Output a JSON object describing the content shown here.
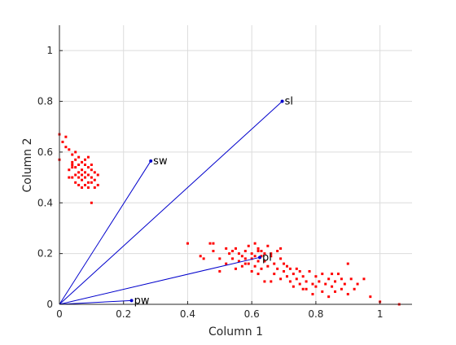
{
  "chart_data": {
    "type": "scatter",
    "title": "",
    "xlabel": "Column 1",
    "ylabel": "Column 2",
    "xlim": [
      0,
      1.1
    ],
    "ylim": [
      0,
      1.1
    ],
    "xticks": [
      0,
      0.2,
      0.4,
      0.6,
      0.8,
      1
    ],
    "yticks": [
      0,
      0.2,
      0.4,
      0.6,
      0.8,
      1
    ],
    "xtick_labels": [
      "0",
      "0.2",
      "0.4",
      "0.6",
      "0.8",
      "1"
    ],
    "ytick_labels": [
      "0",
      "0.2",
      "0.4",
      "0.6",
      "0.8",
      "1"
    ],
    "grid": true,
    "colors": {
      "points": "#ff0000",
      "vectors": "#0000cc",
      "grid": "#dcdcdc",
      "axes": "#262626"
    },
    "vectors": [
      {
        "name": "sl",
        "x": 0.695,
        "y": 0.8
      },
      {
        "name": "sw",
        "x": 0.285,
        "y": 0.565
      },
      {
        "name": "pl",
        "x": 0.625,
        "y": 0.185
      },
      {
        "name": "pw",
        "x": 0.225,
        "y": 0.015
      }
    ],
    "series": [
      {
        "marker": "square",
        "points": [
          [
            0.0,
            0.67
          ],
          [
            0.0,
            0.57
          ],
          [
            0.01,
            0.64
          ],
          [
            0.02,
            0.62
          ],
          [
            0.03,
            0.61
          ],
          [
            0.03,
            0.53
          ],
          [
            0.04,
            0.59
          ],
          [
            0.04,
            0.56
          ],
          [
            0.04,
            0.55
          ],
          [
            0.05,
            0.57
          ],
          [
            0.05,
            0.54
          ],
          [
            0.05,
            0.51
          ],
          [
            0.06,
            0.58
          ],
          [
            0.06,
            0.55
          ],
          [
            0.06,
            0.52
          ],
          [
            0.06,
            0.5
          ],
          [
            0.07,
            0.56
          ],
          [
            0.07,
            0.53
          ],
          [
            0.07,
            0.49
          ],
          [
            0.08,
            0.55
          ],
          [
            0.08,
            0.52
          ],
          [
            0.08,
            0.5
          ],
          [
            0.08,
            0.47
          ],
          [
            0.09,
            0.58
          ],
          [
            0.09,
            0.54
          ],
          [
            0.09,
            0.51
          ],
          [
            0.09,
            0.48
          ],
          [
            0.1,
            0.53
          ],
          [
            0.1,
            0.5
          ],
          [
            0.1,
            0.48
          ],
          [
            0.11,
            0.52
          ],
          [
            0.11,
            0.49
          ],
          [
            0.12,
            0.47
          ],
          [
            0.1,
            0.4
          ],
          [
            0.04,
            0.5
          ],
          [
            0.05,
            0.48
          ],
          [
            0.07,
            0.46
          ],
          [
            0.08,
            0.57
          ],
          [
            0.06,
            0.47
          ],
          [
            0.1,
            0.55
          ],
          [
            0.03,
            0.5
          ],
          [
            0.12,
            0.51
          ],
          [
            0.09,
            0.46
          ],
          [
            0.02,
            0.66
          ],
          [
            0.05,
            0.6
          ],
          [
            0.07,
            0.51
          ],
          [
            0.11,
            0.46
          ],
          [
            0.04,
            0.54
          ],
          [
            0.4,
            0.24
          ],
          [
            0.44,
            0.19
          ],
          [
            0.45,
            0.18
          ],
          [
            0.47,
            0.24
          ],
          [
            0.48,
            0.24
          ],
          [
            0.48,
            0.21
          ],
          [
            0.5,
            0.13
          ],
          [
            0.5,
            0.18
          ],
          [
            0.52,
            0.22
          ],
          [
            0.52,
            0.16
          ],
          [
            0.53,
            0.2
          ],
          [
            0.54,
            0.18
          ],
          [
            0.55,
            0.22
          ],
          [
            0.55,
            0.14
          ],
          [
            0.56,
            0.2
          ],
          [
            0.56,
            0.17
          ],
          [
            0.57,
            0.19
          ],
          [
            0.57,
            0.15
          ],
          [
            0.58,
            0.21
          ],
          [
            0.58,
            0.18
          ],
          [
            0.59,
            0.23
          ],
          [
            0.59,
            0.16
          ],
          [
            0.6,
            0.2
          ],
          [
            0.6,
            0.13
          ],
          [
            0.61,
            0.24
          ],
          [
            0.61,
            0.19
          ],
          [
            0.61,
            0.15
          ],
          [
            0.62,
            0.22
          ],
          [
            0.62,
            0.17
          ],
          [
            0.62,
            0.12
          ],
          [
            0.63,
            0.21
          ],
          [
            0.63,
            0.14
          ],
          [
            0.64,
            0.2
          ],
          [
            0.64,
            0.17
          ],
          [
            0.65,
            0.23
          ],
          [
            0.65,
            0.15
          ],
          [
            0.66,
            0.19
          ],
          [
            0.66,
            0.09
          ],
          [
            0.67,
            0.16
          ],
          [
            0.67,
            0.12
          ],
          [
            0.68,
            0.21
          ],
          [
            0.68,
            0.14
          ],
          [
            0.69,
            0.18
          ],
          [
            0.69,
            0.1
          ],
          [
            0.7,
            0.13
          ],
          [
            0.7,
            0.16
          ],
          [
            0.71,
            0.11
          ],
          [
            0.72,
            0.14
          ],
          [
            0.72,
            0.09
          ],
          [
            0.73,
            0.12
          ],
          [
            0.73,
            0.07
          ],
          [
            0.74,
            0.14
          ],
          [
            0.74,
            0.1
          ],
          [
            0.75,
            0.08
          ],
          [
            0.75,
            0.13
          ],
          [
            0.76,
            0.11
          ],
          [
            0.77,
            0.06
          ],
          [
            0.77,
            0.09
          ],
          [
            0.78,
            0.13
          ],
          [
            0.79,
            0.08
          ],
          [
            0.79,
            0.04
          ],
          [
            0.8,
            0.11
          ],
          [
            0.8,
            0.07
          ],
          [
            0.81,
            0.09
          ],
          [
            0.82,
            0.05
          ],
          [
            0.82,
            0.12
          ],
          [
            0.83,
            0.08
          ],
          [
            0.84,
            0.1
          ],
          [
            0.84,
            0.03
          ],
          [
            0.85,
            0.07
          ],
          [
            0.86,
            0.09
          ],
          [
            0.86,
            0.05
          ],
          [
            0.87,
            0.12
          ],
          [
            0.88,
            0.06
          ],
          [
            0.89,
            0.08
          ],
          [
            0.9,
            0.16
          ],
          [
            0.9,
            0.04
          ],
          [
            0.91,
            0.1
          ],
          [
            0.92,
            0.06
          ],
          [
            0.93,
            0.08
          ],
          [
            0.95,
            0.1
          ],
          [
            0.97,
            0.03
          ],
          [
            1.0,
            0.01
          ],
          [
            1.06,
            0.0
          ],
          [
            0.6,
            0.18
          ],
          [
            0.63,
            0.19
          ],
          [
            0.58,
            0.16
          ],
          [
            0.66,
            0.2
          ],
          [
            0.62,
            0.21
          ],
          [
            0.71,
            0.15
          ],
          [
            0.76,
            0.06
          ],
          [
            0.85,
            0.12
          ],
          [
            0.88,
            0.1
          ],
          [
            0.64,
            0.09
          ],
          [
            0.69,
            0.22
          ],
          [
            0.54,
            0.21
          ]
        ]
      }
    ]
  }
}
